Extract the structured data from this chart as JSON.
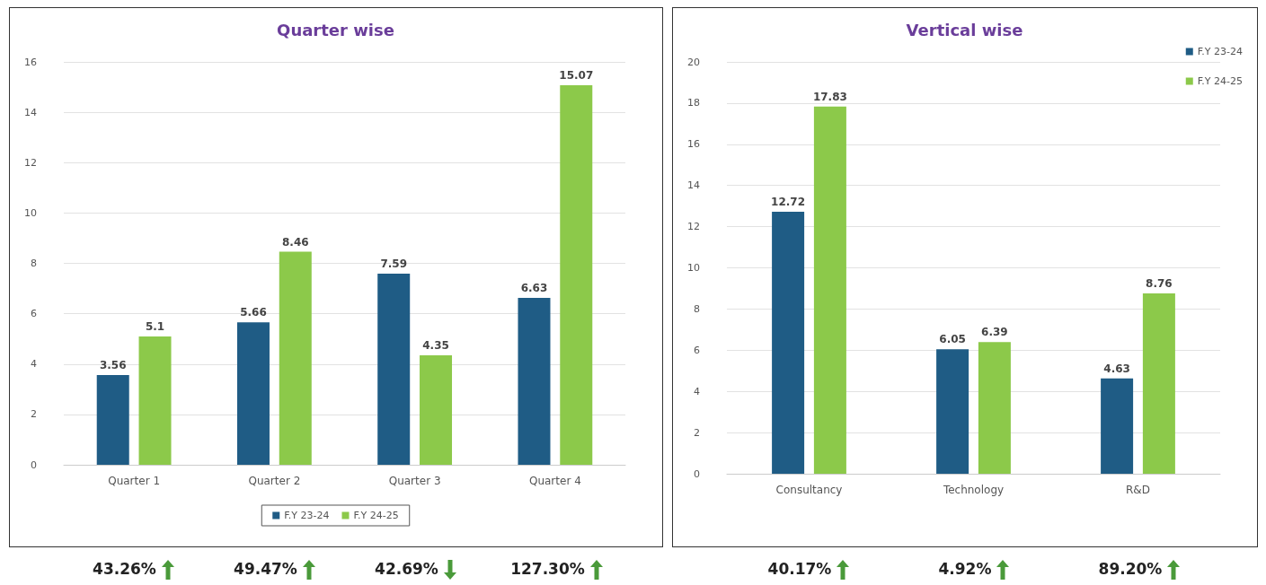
{
  "chart_data": [
    {
      "type": "bar",
      "title": "Quarter wise",
      "categories": [
        "Quarter 1",
        "Quarter 2",
        "Quarter 3",
        "Quarter 4"
      ],
      "series": [
        {
          "name": "F.Y 23-24",
          "color": "#1f5c85",
          "values": [
            3.56,
            5.66,
            7.59,
            6.63
          ]
        },
        {
          "name": "F.Y 24-25",
          "color": "#8cc94a",
          "values": [
            5.1,
            8.46,
            4.35,
            15.07
          ]
        }
      ],
      "ylim": [
        0,
        16
      ],
      "yticks": [
        0,
        2,
        4,
        6,
        8,
        10,
        12,
        14,
        16
      ],
      "grid": "y",
      "legend": "bottom",
      "data_labels": true,
      "annotations": [
        "43.26%",
        "49.47%",
        "42.69%",
        "127.30%"
      ]
    },
    {
      "type": "bar",
      "title": "Vertical wise",
      "categories": [
        "Consultancy",
        "Technology",
        "R&D"
      ],
      "series": [
        {
          "name": "F.Y 23-24",
          "color": "#1f5c85",
          "values": [
            12.72,
            6.05,
            4.63
          ]
        },
        {
          "name": "F.Y 24-25",
          "color": "#8cc94a",
          "values": [
            17.83,
            6.39,
            8.76
          ]
        }
      ],
      "ylim": [
        0,
        20
      ],
      "yticks": [
        0,
        2,
        4,
        6,
        8,
        10,
        12,
        14,
        16,
        18,
        20
      ],
      "grid": "y",
      "legend": "top right",
      "data_labels": true,
      "annotations": [
        "40.17%",
        "4.92%",
        "89.20%"
      ]
    }
  ]
}
